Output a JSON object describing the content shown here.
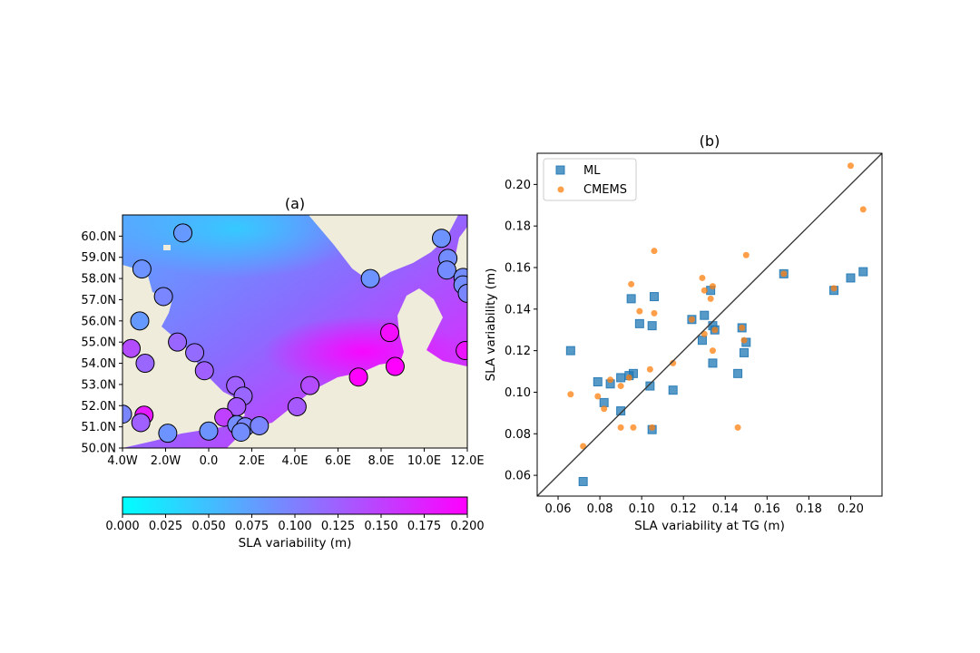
{
  "panel_a": {
    "title": "(a)",
    "colorbar": {
      "label": "SLA variability (m)",
      "ticks": [
        "0.000",
        "0.025",
        "0.050",
        "0.075",
        "0.100",
        "0.125",
        "0.150",
        "0.175",
        "0.200"
      ],
      "range": [
        0,
        0.2
      ],
      "colors": [
        "#00ffff",
        "#ff00ff"
      ]
    },
    "map": {
      "lon_ticks": [
        "4.0W",
        "2.0W",
        "0.0",
        "2.0E",
        "4.0E",
        "6.0E",
        "8.0E",
        "10.0E",
        "12.0E"
      ],
      "lat_ticks": [
        "60.0N",
        "59.0N",
        "58.0N",
        "57.0N",
        "56.0N",
        "55.0N",
        "54.0N",
        "53.0N",
        "52.0N",
        "51.0N",
        "50.0N"
      ],
      "lon_range": [
        -4,
        12
      ],
      "lat_range": [
        50,
        61
      ],
      "land_color": "#efecdc",
      "stations": [
        {
          "lon": -1.2,
          "lat": 60.15,
          "val": 0.08
        },
        {
          "lon": 10.8,
          "lat": 59.9,
          "val": 0.085
        },
        {
          "lon": -3.1,
          "lat": 58.45,
          "val": 0.085
        },
        {
          "lon": 11.1,
          "lat": 58.95,
          "val": 0.09
        },
        {
          "lon": 11.05,
          "lat": 58.4,
          "val": 0.09
        },
        {
          "lon": 11.8,
          "lat": 58.05,
          "val": 0.09
        },
        {
          "lon": 7.5,
          "lat": 58.0,
          "val": 0.085
        },
        {
          "lon": 11.8,
          "lat": 57.7,
          "val": 0.09
        },
        {
          "lon": 12.0,
          "lat": 57.3,
          "val": 0.095
        },
        {
          "lon": -2.1,
          "lat": 57.15,
          "val": 0.095
        },
        {
          "lon": -3.2,
          "lat": 56.0,
          "val": 0.08
        },
        {
          "lon": 8.4,
          "lat": 55.45,
          "val": 0.19
        },
        {
          "lon": -1.45,
          "lat": 55.0,
          "val": 0.12
        },
        {
          "lon": -3.6,
          "lat": 54.7,
          "val": 0.14
        },
        {
          "lon": -0.65,
          "lat": 54.5,
          "val": 0.115
        },
        {
          "lon": 11.9,
          "lat": 54.6,
          "val": 0.185
        },
        {
          "lon": -2.95,
          "lat": 54.0,
          "val": 0.12
        },
        {
          "lon": -0.2,
          "lat": 53.65,
          "val": 0.125
        },
        {
          "lon": 8.65,
          "lat": 53.85,
          "val": 0.2
        },
        {
          "lon": 6.95,
          "lat": 53.35,
          "val": 0.2
        },
        {
          "lon": 1.25,
          "lat": 52.95,
          "val": 0.125
        },
        {
          "lon": 4.7,
          "lat": 52.95,
          "val": 0.14
        },
        {
          "lon": 1.6,
          "lat": 52.45,
          "val": 0.12
        },
        {
          "lon": 1.3,
          "lat": 51.95,
          "val": 0.13
        },
        {
          "lon": 4.1,
          "lat": 51.95,
          "val": 0.13
        },
        {
          "lon": -4.0,
          "lat": 51.6,
          "val": 0.095
        },
        {
          "lon": -3.0,
          "lat": 51.55,
          "val": 0.18
        },
        {
          "lon": -3.15,
          "lat": 51.2,
          "val": 0.125
        },
        {
          "lon": 0.7,
          "lat": 51.45,
          "val": 0.15
        },
        {
          "lon": 1.3,
          "lat": 51.1,
          "val": 0.09
        },
        {
          "lon": 1.7,
          "lat": 51.0,
          "val": 0.095
        },
        {
          "lon": 2.35,
          "lat": 51.05,
          "val": 0.095
        },
        {
          "lon": 1.5,
          "lat": 50.75,
          "val": 0.09
        },
        {
          "lon": -1.9,
          "lat": 50.7,
          "val": 0.085
        },
        {
          "lon": 0.0,
          "lat": 50.8,
          "val": 0.085
        }
      ]
    }
  },
  "chart_data": {
    "type": "scatter",
    "title": "(b)",
    "xlabel": "SLA variability at TG (m)",
    "ylabel": "SLA variability (m)",
    "xlim": [
      0.05,
      0.215
    ],
    "ylim": [
      0.05,
      0.215
    ],
    "x_ticks": [
      "0.06",
      "0.08",
      "0.10",
      "0.12",
      "0.14",
      "0.16",
      "0.18",
      "0.20"
    ],
    "y_ticks": [
      "0.06",
      "0.08",
      "0.10",
      "0.12",
      "0.14",
      "0.16",
      "0.18",
      "0.20"
    ],
    "reference_line": "1:1",
    "legend_position": "top-left",
    "series": [
      {
        "name": "ML",
        "marker": "square",
        "color": "#1f77b4",
        "points": [
          [
            0.066,
            0.12
          ],
          [
            0.072,
            0.057
          ],
          [
            0.079,
            0.105
          ],
          [
            0.082,
            0.095
          ],
          [
            0.085,
            0.104
          ],
          [
            0.09,
            0.107
          ],
          [
            0.09,
            0.091
          ],
          [
            0.094,
            0.108
          ],
          [
            0.095,
            0.145
          ],
          [
            0.096,
            0.109
          ],
          [
            0.099,
            0.133
          ],
          [
            0.104,
            0.103
          ],
          [
            0.105,
            0.082
          ],
          [
            0.105,
            0.132
          ],
          [
            0.106,
            0.146
          ],
          [
            0.115,
            0.101
          ],
          [
            0.124,
            0.135
          ],
          [
            0.129,
            0.125
          ],
          [
            0.13,
            0.137
          ],
          [
            0.133,
            0.149
          ],
          [
            0.134,
            0.114
          ],
          [
            0.134,
            0.132
          ],
          [
            0.135,
            0.13
          ],
          [
            0.146,
            0.109
          ],
          [
            0.148,
            0.131
          ],
          [
            0.149,
            0.119
          ],
          [
            0.15,
            0.124
          ],
          [
            0.168,
            0.157
          ],
          [
            0.192,
            0.149
          ],
          [
            0.2,
            0.155
          ],
          [
            0.206,
            0.158
          ]
        ]
      },
      {
        "name": "CMEMS",
        "marker": "circle",
        "color": "#ff7f0e",
        "points": [
          [
            0.066,
            0.099
          ],
          [
            0.072,
            0.074
          ],
          [
            0.079,
            0.098
          ],
          [
            0.082,
            0.092
          ],
          [
            0.085,
            0.106
          ],
          [
            0.09,
            0.083
          ],
          [
            0.09,
            0.103
          ],
          [
            0.094,
            0.107
          ],
          [
            0.095,
            0.152
          ],
          [
            0.096,
            0.083
          ],
          [
            0.099,
            0.139
          ],
          [
            0.104,
            0.111
          ],
          [
            0.105,
            0.083
          ],
          [
            0.106,
            0.138
          ],
          [
            0.106,
            0.168
          ],
          [
            0.115,
            0.114
          ],
          [
            0.124,
            0.135
          ],
          [
            0.129,
            0.155
          ],
          [
            0.13,
            0.149
          ],
          [
            0.13,
            0.128
          ],
          [
            0.133,
            0.145
          ],
          [
            0.134,
            0.12
          ],
          [
            0.134,
            0.151
          ],
          [
            0.135,
            0.13
          ],
          [
            0.146,
            0.083
          ],
          [
            0.148,
            0.131
          ],
          [
            0.149,
            0.125
          ],
          [
            0.15,
            0.166
          ],
          [
            0.168,
            0.157
          ],
          [
            0.192,
            0.15
          ],
          [
            0.2,
            0.209
          ],
          [
            0.206,
            0.188
          ]
        ]
      }
    ]
  }
}
